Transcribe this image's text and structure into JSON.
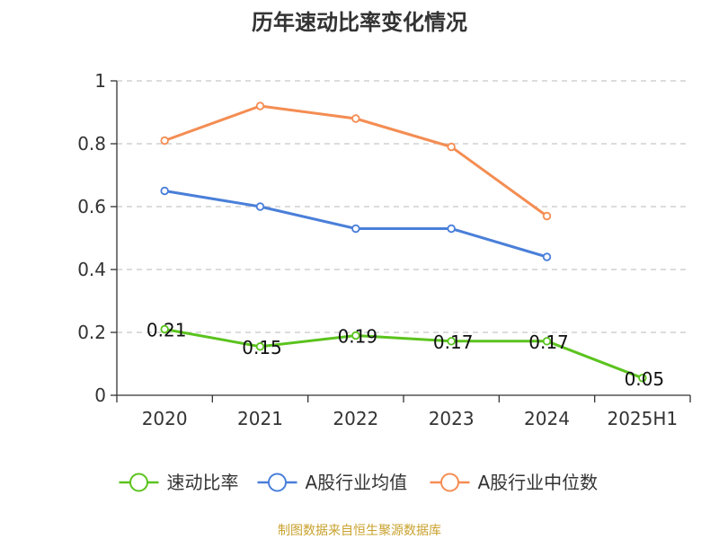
{
  "chart_data": {
    "type": "line",
    "title": "历年速动比率变化情况",
    "categories": [
      "2020",
      "2021",
      "2022",
      "2023",
      "2024",
      "2025H1"
    ],
    "ylim": [
      0,
      1
    ],
    "yticks": [
      0,
      0.2,
      0.4,
      0.6,
      0.8,
      1
    ],
    "ytick_labels": [
      "0",
      "0.2",
      "0.4",
      "0.6",
      "0.8",
      "1"
    ],
    "grid": true,
    "legend_position": "bottom",
    "series": [
      {
        "name": "速动比率",
        "color": "#5bc31e",
        "values": [
          0.21,
          0.155,
          0.19,
          0.172,
          0.172,
          0.055
        ],
        "labels": [
          "0.21",
          "0.15",
          "0.19",
          "0.17",
          "0.17",
          "0.05"
        ]
      },
      {
        "name": "A股行业均值",
        "color": "#4a7fd9",
        "values": [
          0.65,
          0.6,
          0.53,
          0.53,
          0.44,
          null
        ],
        "labels": null
      },
      {
        "name": "A股行业中位数",
        "color": "#f48d53",
        "values": [
          0.81,
          0.92,
          0.88,
          0.79,
          0.57,
          null
        ],
        "labels": null
      }
    ],
    "source": "制图数据来自恒生聚源数据库"
  }
}
